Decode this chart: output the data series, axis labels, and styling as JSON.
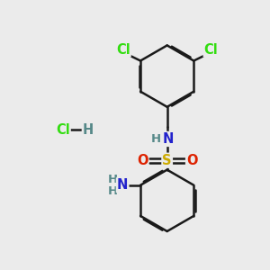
{
  "bg_color": "#ebebeb",
  "bond_color": "#1a1a1a",
  "bond_width": 1.8,
  "atom_colors": {
    "Cl": "#33dd11",
    "N": "#2222cc",
    "S": "#ccaa00",
    "O": "#dd2200",
    "H": "#558888",
    "C": "#1a1a1a"
  },
  "font_size": 10.5,
  "font_size_small": 9.5
}
